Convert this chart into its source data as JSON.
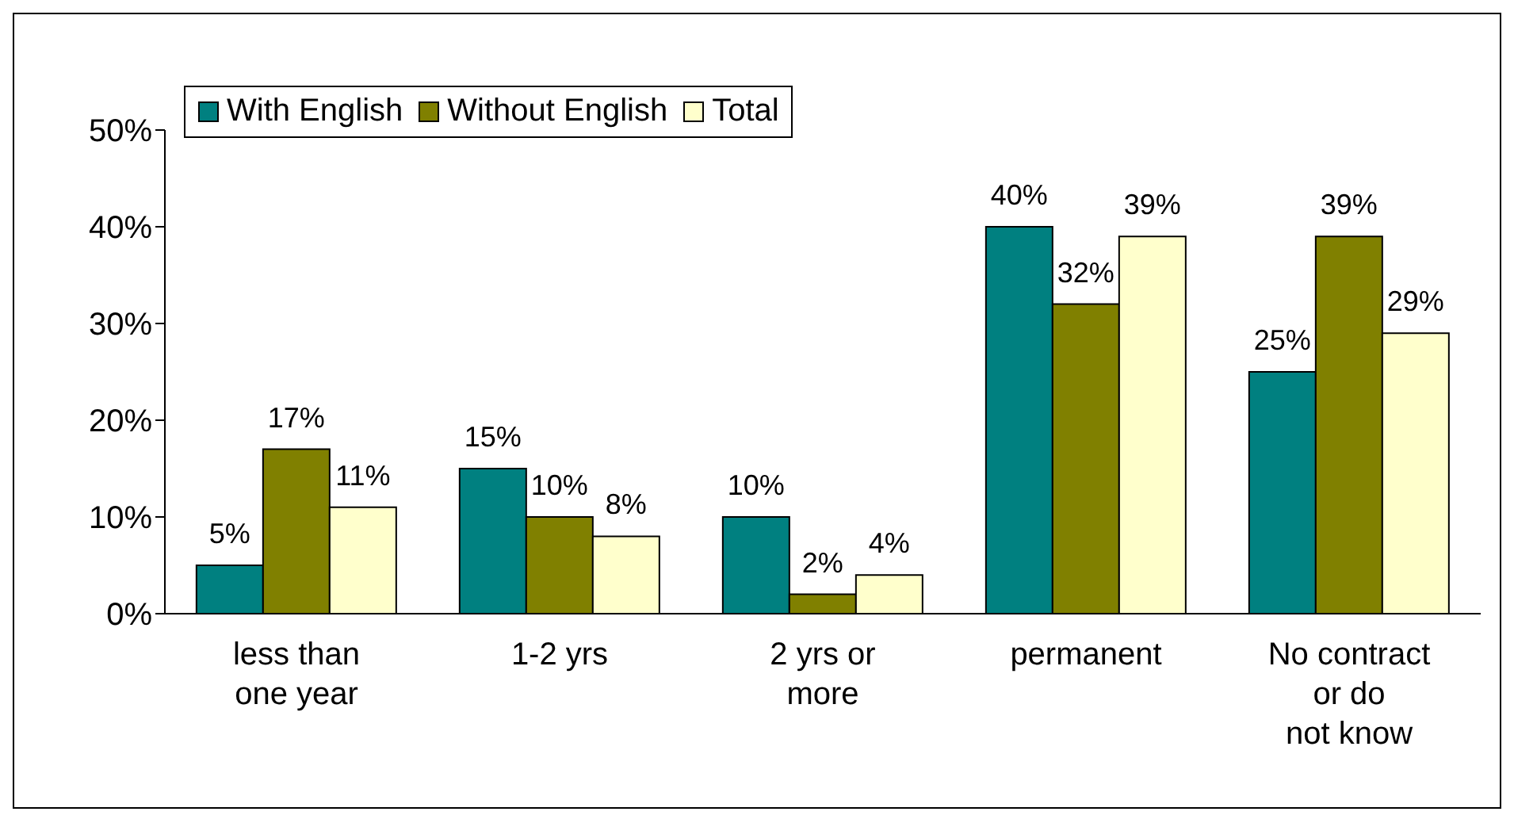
{
  "chart_data": {
    "type": "bar",
    "categories": [
      "less than one year",
      "1-2 yrs",
      "2 yrs or more",
      "permanent",
      "No contract or do not know"
    ],
    "series": [
      {
        "name": "With English",
        "color": "#008080",
        "values": [
          5,
          15,
          10,
          40,
          25
        ],
        "value_labels": [
          "5%",
          "15%",
          "10%",
          "40%",
          "25%"
        ]
      },
      {
        "name": "Without English",
        "color": "#808000",
        "values": [
          17,
          10,
          2,
          32,
          39
        ],
        "value_labels": [
          "17%",
          "10%",
          "2%",
          "32%",
          "39%"
        ]
      },
      {
        "name": "Total",
        "color": "#ffffcc",
        "values": [
          11,
          8,
          4,
          39,
          29
        ],
        "value_labels": [
          "11%",
          "8%",
          "4%",
          "39%",
          "29%"
        ]
      }
    ],
    "ylim": [
      0,
      50
    ],
    "yticks": [
      {
        "value": 0,
        "label": "0%"
      },
      {
        "value": 10,
        "label": "10%"
      },
      {
        "value": 20,
        "label": "20%"
      },
      {
        "value": 30,
        "label": "30%"
      },
      {
        "value": 40,
        "label": "40%"
      },
      {
        "value": 50,
        "label": "50%"
      }
    ],
    "grid": false,
    "legend": "top left"
  }
}
